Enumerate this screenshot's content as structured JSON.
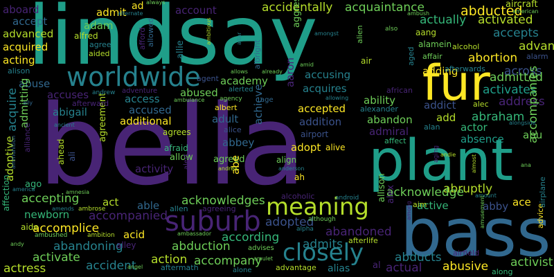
{
  "palette": {
    "purple": "#482475",
    "indigo": "#3b528b",
    "blue": "#31688e",
    "teal": "#26828e",
    "green": "#1f9e89",
    "mint": "#35b779",
    "lime": "#6ece58",
    "yellow": "#fde725",
    "olive": "#b5de2b",
    "deep": "#440154"
  },
  "words": [
    {
      "text": "lindsay",
      "color": "#1f9e89"
    },
    {
      "text": "bella",
      "color": "#482475"
    },
    {
      "text": "plant",
      "color": "#1f9e89"
    },
    {
      "text": "bass",
      "color": "#31688e"
    },
    {
      "text": "fur",
      "color": "#fde725"
    },
    {
      "text": "worldwide",
      "color": "#26828e"
    },
    {
      "text": "suburb",
      "color": "#482475"
    },
    {
      "text": "meaning",
      "color": "#b5de2b"
    },
    {
      "text": "closely",
      "color": "#26828e"
    },
    {
      "text": "abducted",
      "color": "#fde725"
    },
    {
      "text": "accidentally",
      "color": "#b5de2b"
    },
    {
      "text": "acquaintance",
      "color": "#6ece58"
    },
    {
      "text": "actually",
      "color": "#35b779"
    },
    {
      "text": "activated",
      "color": "#b5de2b"
    },
    {
      "text": "accepts",
      "color": "#26828e"
    },
    {
      "text": "abortion",
      "color": "#fde725"
    },
    {
      "text": "advance",
      "color": "#b5de2b"
    },
    {
      "text": "across",
      "color": "#3b528b"
    },
    {
      "text": "admitted",
      "color": "#6ece58"
    },
    {
      "text": "activates",
      "color": "#1f9e89"
    },
    {
      "text": "address",
      "color": "#482475"
    },
    {
      "text": "abraham",
      "color": "#35b779"
    },
    {
      "text": "accompanies",
      "color": "#6ece58"
    },
    {
      "text": "abruptly",
      "color": "#b5de2b"
    },
    {
      "text": "acknowledge",
      "color": "#6ece58"
    },
    {
      "text": "accepting",
      "color": "#6ece58"
    },
    {
      "text": "acknowledges",
      "color": "#6ece58"
    },
    {
      "text": "accompanied",
      "color": "#482475"
    },
    {
      "text": "accomplice",
      "color": "#fde725"
    },
    {
      "text": "abandoning",
      "color": "#26828e"
    },
    {
      "text": "abduction",
      "color": "#6ece58"
    },
    {
      "text": "accompany",
      "color": "#6ece58"
    },
    {
      "text": "activate",
      "color": "#6ece58"
    },
    {
      "text": "accident",
      "color": "#26828e"
    },
    {
      "text": "actress",
      "color": "#b5de2b"
    },
    {
      "text": "action",
      "color": "#b5de2b"
    },
    {
      "text": "adopted",
      "color": "#3b528b"
    },
    {
      "text": "abandoned",
      "color": "#482475"
    },
    {
      "text": "according",
      "color": "#35b779"
    },
    {
      "text": "admits",
      "color": "#26828e"
    },
    {
      "text": "abducts",
      "color": "#26828e"
    },
    {
      "text": "actual",
      "color": "#482475"
    },
    {
      "text": "abusive",
      "color": "#fde725"
    },
    {
      "text": "activist",
      "color": "#6ece58"
    },
    {
      "text": "advantage",
      "color": "#b5de2b"
    },
    {
      "text": "alias",
      "color": "#26828e"
    },
    {
      "text": "aftermath",
      "color": "#26828e"
    },
    {
      "text": "admit",
      "color": "#fde725"
    },
    {
      "text": "adam",
      "color": "#6ece58"
    },
    {
      "text": "account",
      "color": "#482475"
    },
    {
      "text": "aboard",
      "color": "#482475"
    },
    {
      "text": "accept",
      "color": "#31688e"
    },
    {
      "text": "advanced",
      "color": "#b5de2b"
    },
    {
      "text": "acquired",
      "color": "#fde725"
    },
    {
      "text": "acting",
      "color": "#fde725"
    },
    {
      "text": "alison",
      "color": "#26828e"
    },
    {
      "text": "abuse",
      "color": "#31688e"
    },
    {
      "text": "accuses",
      "color": "#482475"
    },
    {
      "text": "abigail",
      "color": "#26828e"
    },
    {
      "text": "accused",
      "color": "#31688e"
    },
    {
      "text": "additional",
      "color": "#fde725"
    },
    {
      "text": "access",
      "color": "#26828e"
    },
    {
      "text": "abused",
      "color": "#6ece58"
    },
    {
      "text": "academy",
      "color": "#6ece58"
    },
    {
      "text": "accusing",
      "color": "#26828e"
    },
    {
      "text": "acquires",
      "color": "#26828e"
    },
    {
      "text": "ability",
      "color": "#6ece58"
    },
    {
      "text": "accepted",
      "color": "#fde725"
    },
    {
      "text": "addition",
      "color": "#3b528b"
    },
    {
      "text": "adding",
      "color": "#fde725"
    },
    {
      "text": "addict",
      "color": "#3b528b"
    },
    {
      "text": "add",
      "color": "#b5de2b"
    },
    {
      "text": "actor",
      "color": "#35b779"
    },
    {
      "text": "abandon",
      "color": "#6ece58"
    },
    {
      "text": "admiral",
      "color": "#482475"
    },
    {
      "text": "absence",
      "color": "#1f9e89"
    },
    {
      "text": "abu",
      "color": "#6ece58"
    },
    {
      "text": "adult",
      "color": "#31688e"
    },
    {
      "text": "abbey",
      "color": "#31688e"
    },
    {
      "text": "achieve",
      "color": "#31688e"
    },
    {
      "text": "adopt",
      "color": "#fde725"
    },
    {
      "text": "activity",
      "color": "#482475"
    },
    {
      "text": "allow",
      "color": "#6ece58"
    },
    {
      "text": "agreed",
      "color": "#6ece58"
    },
    {
      "text": "agreement",
      "color": "#b5de2b"
    },
    {
      "text": "abe",
      "color": "#fde725"
    },
    {
      "text": "act",
      "color": "#b5de2b"
    },
    {
      "text": "able",
      "color": "#31688e"
    },
    {
      "text": "acid",
      "color": "#fde725"
    },
    {
      "text": "ace",
      "color": "#fde725"
    },
    {
      "text": "active",
      "color": "#35b779"
    },
    {
      "text": "abby",
      "color": "#3b528b"
    },
    {
      "text": "newborn",
      "color": "#35b779"
    },
    {
      "text": "aaron",
      "color": "#482475"
    },
    {
      "text": "agrees",
      "color": "#b5de2b"
    },
    {
      "text": "afraid",
      "color": "#35b779"
    },
    {
      "text": "aircraft",
      "color": "#b5de2b"
    },
    {
      "text": "aang",
      "color": "#b5de2b"
    },
    {
      "text": "alamein",
      "color": "#6ece58"
    },
    {
      "text": "affair",
      "color": "#6ece58"
    },
    {
      "text": "alcohol",
      "color": "#b5de2b"
    },
    {
      "text": "alarm",
      "color": "#3b528b"
    },
    {
      "text": "afterwards",
      "color": "#26828e"
    },
    {
      "text": "alec",
      "color": "#b5de2b"
    },
    {
      "text": "alexander",
      "color": "#26828e"
    },
    {
      "text": "african",
      "color": "#482475"
    },
    {
      "text": "alan",
      "color": "#26828e"
    },
    {
      "text": "affect",
      "color": "#35b779"
    },
    {
      "text": "airport",
      "color": "#3b528b"
    },
    {
      "text": "alive",
      "color": "#fde725"
    },
    {
      "text": "align",
      "color": "#6ece58"
    },
    {
      "text": "ah",
      "color": "#fde725"
    },
    {
      "text": "alcoholic",
      "color": "#482475"
    },
    {
      "text": "aim",
      "color": "#b5de2b"
    },
    {
      "text": "allison",
      "color": "#6ece58"
    },
    {
      "text": "alex",
      "color": "#482475"
    },
    {
      "text": "advice",
      "color": "#fde725"
    },
    {
      "text": "airplane",
      "color": "#26828e"
    },
    {
      "text": "afterlife",
      "color": "#b5de2b"
    },
    {
      "text": "airfield",
      "color": "#482475"
    },
    {
      "text": "al",
      "color": "#482475"
    },
    {
      "text": "along",
      "color": "#35b779"
    },
    {
      "text": "alone",
      "color": "#26828e"
    },
    {
      "text": "ad",
      "color": "#fde725"
    },
    {
      "text": "alfred",
      "color": "#b5de2b"
    },
    {
      "text": "agree",
      "color": "#26828e"
    },
    {
      "text": "aided",
      "color": "#b5de2b"
    },
    {
      "text": "afford",
      "color": "#482475"
    },
    {
      "text": "allowed",
      "color": "#31688e"
    },
    {
      "text": "allie",
      "color": "#26828e"
    },
    {
      "text": "agent",
      "color": "#3b528b"
    },
    {
      "text": "adventure",
      "color": "#482475"
    },
    {
      "text": "andrew",
      "color": "#26828e"
    },
    {
      "text": "afterward",
      "color": "#482475"
    },
    {
      "text": "alice",
      "color": "#3b528b"
    },
    {
      "text": "albert",
      "color": "#fde725"
    },
    {
      "text": "albright",
      "color": "#31688e"
    },
    {
      "text": "alerted",
      "color": "#26828e"
    },
    {
      "text": "age",
      "color": "#31688e"
    },
    {
      "text": "aggressive",
      "color": "#6ece58"
    },
    {
      "text": "alien",
      "color": "#6ece58"
    },
    {
      "text": "air",
      "color": "#b5de2b"
    },
    {
      "text": "aged",
      "color": "#26828e"
    },
    {
      "text": "acquire",
      "color": "#26828e"
    },
    {
      "text": "admitting",
      "color": "#6ece58"
    },
    {
      "text": "adoptive",
      "color": "#b5de2b"
    },
    {
      "text": "ago",
      "color": "#35b779"
    },
    {
      "text": "ahead",
      "color": "#b5de2b"
    },
    {
      "text": "ali",
      "color": "#3b528b"
    },
    {
      "text": "alliance",
      "color": "#482475"
    },
    {
      "text": "alert",
      "color": "#482475"
    },
    {
      "text": "allen",
      "color": "#26828e"
    },
    {
      "text": "agreeing",
      "color": "#482475"
    },
    {
      "text": "aide",
      "color": "#b5de2b"
    },
    {
      "text": "affection",
      "color": "#35b779"
    },
    {
      "text": "alley",
      "color": "#482475"
    },
    {
      "text": "advises",
      "color": "#6ece58"
    },
    {
      "text": "ambushed",
      "color": "#6ece58"
    },
    {
      "text": "ambition",
      "color": "#b5de2b"
    },
    {
      "text": "amends",
      "color": "#26828e"
    },
    {
      "text": "ambrose",
      "color": "#b5de2b"
    },
    {
      "text": "although",
      "color": "#6ece58"
    },
    {
      "text": "alpha",
      "color": "#26828e"
    },
    {
      "text": "android",
      "color": "#26828e"
    },
    {
      "text": "anderson",
      "color": "#26828e"
    },
    {
      "text": "andrea",
      "color": "#b5de2b"
    },
    {
      "text": "allows",
      "color": "#6ece58"
    },
    {
      "text": "already",
      "color": "#6ece58"
    },
    {
      "text": "altar",
      "color": "#26828e"
    },
    {
      "text": "amid",
      "color": "#6ece58"
    },
    {
      "text": "amongst",
      "color": "#26828e"
    },
    {
      "text": "ambitious",
      "color": "#b5de2b"
    },
    {
      "text": "ambulance",
      "color": "#6ece58"
    },
    {
      "text": "agency",
      "color": "#6ece58"
    },
    {
      "text": "allowing",
      "color": "#26828e"
    },
    {
      "text": "ally",
      "color": "#31688e"
    },
    {
      "text": "ancient",
      "color": "#26828e"
    },
    {
      "text": "ammunition",
      "color": "#31688e"
    },
    {
      "text": "america",
      "color": "#26828e"
    },
    {
      "text": "amnesia",
      "color": "#6ece58"
    },
    {
      "text": "andy",
      "color": "#6ece58"
    },
    {
      "text": "angel",
      "color": "#6ece58"
    },
    {
      "text": "amulet",
      "color": "#6ece58"
    },
    {
      "text": "ambassador",
      "color": "#6ece58"
    },
    {
      "text": "alongside",
      "color": "#26828e"
    },
    {
      "text": "almost",
      "color": "#b5de2b"
    },
    {
      "text": "ana",
      "color": "#6ece58"
    },
    {
      "text": "aging",
      "color": "#482475"
    },
    {
      "text": "andie",
      "color": "#b5de2b"
    },
    {
      "text": "amount",
      "color": "#26828e"
    },
    {
      "text": "among",
      "color": "#482475"
    },
    {
      "text": "amusement",
      "color": "#6ece58"
    },
    {
      "text": "always",
      "color": "#6ece58"
    },
    {
      "text": "alternate",
      "color": "#26828e"
    },
    {
      "text": "ambush",
      "color": "#6ece58"
    },
    {
      "text": "american",
      "color": "#6ece58"
    },
    {
      "text": "also",
      "color": "#6ece58"
    }
  ]
}
